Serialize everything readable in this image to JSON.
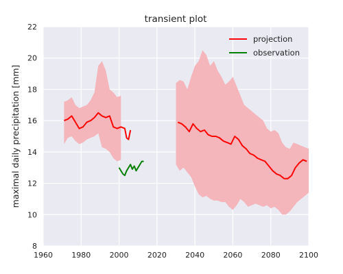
{
  "chart_data": {
    "type": "line",
    "title": "transient plot",
    "xlabel": "",
    "ylabel": "maximal daily precipitation [mm]",
    "xlim": [
      1960,
      2100
    ],
    "ylim": [
      8,
      22
    ],
    "xticks": [
      1960,
      1980,
      2000,
      2020,
      2040,
      2060,
      2080,
      2100
    ],
    "yticks": [
      8,
      10,
      12,
      14,
      16,
      18,
      20,
      22
    ],
    "grid": true,
    "legend_position": "top-right",
    "series": [
      {
        "name": "projection",
        "color": "#ff0000",
        "segments": [
          {
            "x": [
              1971,
              1973,
              1975,
              1977,
              1979,
              1981,
              1983,
              1985,
              1987,
              1989,
              1991,
              1993,
              1995,
              1997,
              1999,
              2001,
              2003,
              2004,
              2005,
              2006
            ],
            "y": [
              16.0,
              16.1,
              16.3,
              15.9,
              15.5,
              15.6,
              15.9,
              16.0,
              16.2,
              16.5,
              16.3,
              16.2,
              16.3,
              15.6,
              15.5,
              15.6,
              15.5,
              14.9,
              14.8,
              15.4
            ]
          },
          {
            "x": [
              2031,
              2033,
              2035,
              2037,
              2039,
              2041,
              2043,
              2045,
              2047,
              2049,
              2051,
              2053,
              2055,
              2057,
              2059,
              2061,
              2063,
              2065,
              2067,
              2069,
              2071,
              2073,
              2075,
              2077,
              2079,
              2081,
              2083,
              2085,
              2087,
              2089,
              2091,
              2093,
              2095,
              2097,
              2099
            ],
            "y": [
              15.9,
              15.8,
              15.6,
              15.3,
              15.8,
              15.5,
              15.3,
              15.4,
              15.1,
              15.0,
              15.0,
              14.9,
              14.7,
              14.6,
              14.5,
              15.0,
              14.8,
              14.4,
              14.2,
              13.9,
              13.8,
              13.6,
              13.5,
              13.4,
              13.1,
              12.8,
              12.6,
              12.5,
              12.3,
              12.3,
              12.5,
              13.0,
              13.3,
              13.5,
              13.4
            ]
          }
        ],
        "band": {
          "color": "#f4b5bb",
          "segments": [
            {
              "x": [
                1971,
                1973,
                1975,
                1977,
                1979,
                1981,
                1983,
                1985,
                1987,
                1989,
                1991,
                1993,
                1995,
                1997,
                1999,
                2001
              ],
              "upper": [
                17.2,
                17.3,
                17.5,
                17.0,
                16.8,
                16.9,
                17.0,
                17.3,
                17.8,
                19.5,
                19.8,
                19.2,
                18.0,
                17.8,
                17.5,
                17.6
              ],
              "lower": [
                14.5,
                14.9,
                15.0,
                14.7,
                14.5,
                14.6,
                14.8,
                14.9,
                15.0,
                15.2,
                14.3,
                14.2,
                14.0,
                13.6,
                13.4,
                13.5
              ]
            },
            {
              "x": [
                2030,
                2032,
                2034,
                2036,
                2038,
                2040,
                2042,
                2044,
                2046,
                2048,
                2050,
                2052,
                2054,
                2056,
                2058,
                2060,
                2062,
                2064,
                2066,
                2068,
                2070,
                2072,
                2074,
                2076,
                2078,
                2080,
                2082,
                2084,
                2086,
                2088,
                2090,
                2092,
                2094,
                2096,
                2098,
                2100
              ],
              "upper": [
                18.4,
                18.6,
                18.5,
                18.0,
                18.8,
                19.5,
                19.8,
                20.5,
                20.2,
                19.5,
                19.8,
                19.2,
                18.8,
                18.3,
                18.5,
                18.8,
                18.2,
                17.6,
                17.0,
                16.8,
                16.6,
                16.4,
                16.2,
                16.0,
                15.5,
                15.3,
                15.4,
                15.2,
                14.6,
                14.3,
                14.2,
                14.6,
                14.5,
                14.4,
                14.3,
                14.2
              ],
              "lower": [
                13.2,
                12.8,
                13.0,
                12.7,
                12.4,
                11.8,
                11.3,
                11.1,
                11.2,
                11.0,
                10.9,
                10.9,
                10.8,
                10.8,
                10.5,
                10.3,
                10.6,
                11.0,
                10.8,
                10.5,
                10.6,
                10.7,
                10.6,
                10.5,
                10.6,
                10.4,
                10.5,
                10.3,
                10.0,
                10.0,
                10.2,
                10.5,
                10.8,
                11.0,
                11.2,
                11.4
              ]
            }
          ]
        }
      },
      {
        "name": "observation",
        "color": "#008000",
        "segments": [
          {
            "x": [
              2000,
              2001,
              2002,
              2003,
              2004,
              2005,
              2006,
              2007,
              2008,
              2009,
              2010,
              2011,
              2012,
              2013
            ],
            "y": [
              13.0,
              12.8,
              12.6,
              12.5,
              12.8,
              13.0,
              13.2,
              12.9,
              13.1,
              12.8,
              13.0,
              13.2,
              13.4,
              13.4
            ]
          }
        ]
      }
    ]
  },
  "colors": {
    "plot_background": "#eaeaf2",
    "grid": "#ffffff"
  }
}
